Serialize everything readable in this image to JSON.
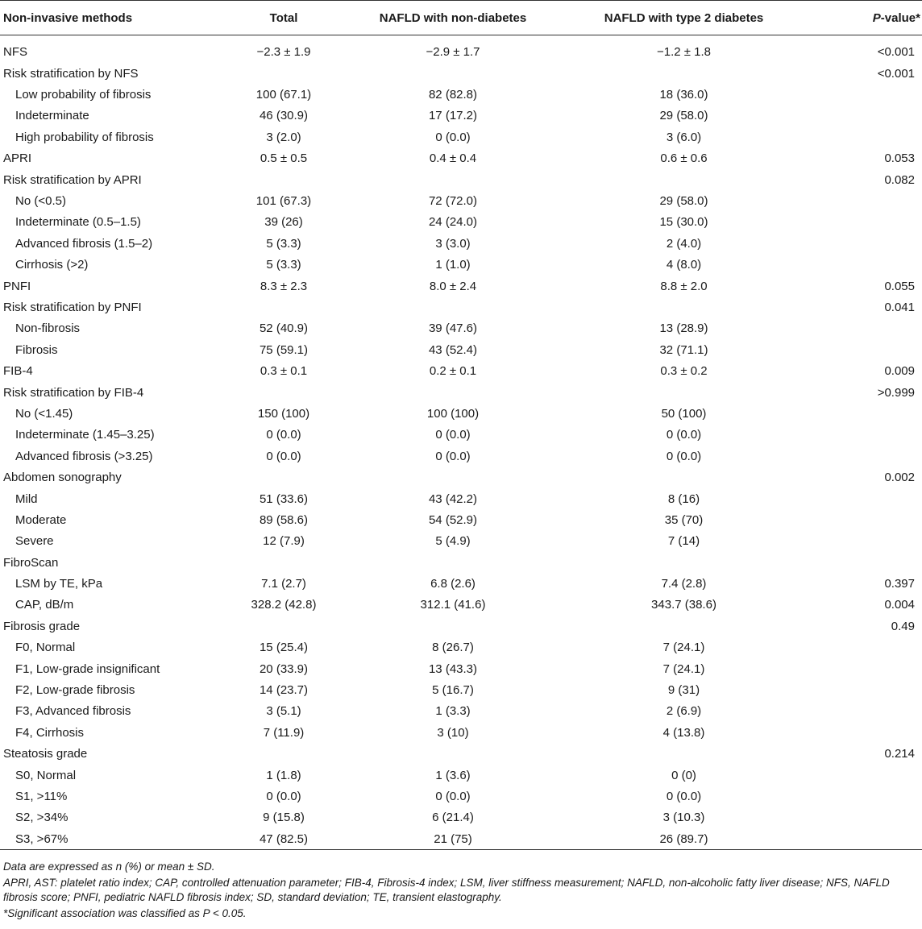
{
  "table": {
    "headers": [
      "Non-invasive methods",
      "Total",
      "NAFLD with non-diabetes",
      "NAFLD with type 2 diabetes",
      "P-value*"
    ],
    "header_pvalue_italic": "P",
    "header_pvalue_rest": "-value*",
    "rows": [
      {
        "label": "NFS",
        "indent": false,
        "total": "−2.3 ± 1.9",
        "non_diabetes": "−2.9 ± 1.7",
        "type2_diabetes": "−1.2 ± 1.8",
        "p_value": "<0.001"
      },
      {
        "label": "Risk stratification by NFS",
        "indent": false,
        "total": "",
        "non_diabetes": "",
        "type2_diabetes": "",
        "p_value": "<0.001"
      },
      {
        "label": "Low probability of fibrosis",
        "indent": true,
        "total": "100 (67.1)",
        "non_diabetes": "82 (82.8)",
        "type2_diabetes": "18 (36.0)",
        "p_value": ""
      },
      {
        "label": "Indeterminate",
        "indent": true,
        "total": "46 (30.9)",
        "non_diabetes": "17 (17.2)",
        "type2_diabetes": "29 (58.0)",
        "p_value": ""
      },
      {
        "label": "High probability of fibrosis",
        "indent": true,
        "total": "3 (2.0)",
        "non_diabetes": "0 (0.0)",
        "type2_diabetes": "3 (6.0)",
        "p_value": ""
      },
      {
        "label": "APRI",
        "indent": false,
        "total": "0.5 ± 0.5",
        "non_diabetes": "0.4 ± 0.4",
        "type2_diabetes": "0.6 ± 0.6",
        "p_value": "0.053"
      },
      {
        "label": "Risk stratification by APRI",
        "indent": false,
        "total": "",
        "non_diabetes": "",
        "type2_diabetes": "",
        "p_value": "0.082"
      },
      {
        "label": "No (<0.5)",
        "indent": true,
        "total": "101 (67.3)",
        "non_diabetes": "72 (72.0)",
        "type2_diabetes": "29 (58.0)",
        "p_value": ""
      },
      {
        "label": "Indeterminate (0.5–1.5)",
        "indent": true,
        "total": "39 (26)",
        "non_diabetes": "24 (24.0)",
        "type2_diabetes": "15 (30.0)",
        "p_value": ""
      },
      {
        "label": "Advanced fibrosis (1.5–2)",
        "indent": true,
        "total": "5 (3.3)",
        "non_diabetes": "3 (3.0)",
        "type2_diabetes": "2 (4.0)",
        "p_value": ""
      },
      {
        "label": "Cirrhosis (>2)",
        "indent": true,
        "total": "5 (3.3)",
        "non_diabetes": "1 (1.0)",
        "type2_diabetes": "4 (8.0)",
        "p_value": ""
      },
      {
        "label": "PNFI",
        "indent": false,
        "total": "8.3 ± 2.3",
        "non_diabetes": "8.0 ± 2.4",
        "type2_diabetes": "8.8 ± 2.0",
        "p_value": "0.055"
      },
      {
        "label": "Risk stratification by PNFI",
        "indent": false,
        "total": "",
        "non_diabetes": "",
        "type2_diabetes": "",
        "p_value": "0.041"
      },
      {
        "label": "Non-fibrosis",
        "indent": true,
        "total": "52 (40.9)",
        "non_diabetes": "39 (47.6)",
        "type2_diabetes": "13 (28.9)",
        "p_value": ""
      },
      {
        "label": "Fibrosis",
        "indent": true,
        "total": "75 (59.1)",
        "non_diabetes": "43 (52.4)",
        "type2_diabetes": "32 (71.1)",
        "p_value": ""
      },
      {
        "label": "FIB-4",
        "indent": false,
        "total": "0.3 ± 0.1",
        "non_diabetes": "0.2 ± 0.1",
        "type2_diabetes": "0.3 ± 0.2",
        "p_value": "0.009"
      },
      {
        "label": "Risk stratification by FIB-4",
        "indent": false,
        "total": "",
        "non_diabetes": "",
        "type2_diabetes": "",
        "p_value": ">0.999"
      },
      {
        "label": "No (<1.45)",
        "indent": true,
        "total": "150 (100)",
        "non_diabetes": "100 (100)",
        "type2_diabetes": "50 (100)",
        "p_value": ""
      },
      {
        "label": "Indeterminate (1.45–3.25)",
        "indent": true,
        "total": "0 (0.0)",
        "non_diabetes": "0 (0.0)",
        "type2_diabetes": "0 (0.0)",
        "p_value": ""
      },
      {
        "label": "Advanced fibrosis (>3.25)",
        "indent": true,
        "total": "0 (0.0)",
        "non_diabetes": "0 (0.0)",
        "type2_diabetes": "0 (0.0)",
        "p_value": ""
      },
      {
        "label": "Abdomen sonography",
        "indent": false,
        "total": "",
        "non_diabetes": "",
        "type2_diabetes": "",
        "p_value": "0.002"
      },
      {
        "label": "Mild",
        "indent": true,
        "total": "51 (33.6)",
        "non_diabetes": "43 (42.2)",
        "type2_diabetes": "8 (16)",
        "p_value": ""
      },
      {
        "label": "Moderate",
        "indent": true,
        "total": "89 (58.6)",
        "non_diabetes": "54 (52.9)",
        "type2_diabetes": "35 (70)",
        "p_value": ""
      },
      {
        "label": "Severe",
        "indent": true,
        "total": "12 (7.9)",
        "non_diabetes": "5 (4.9)",
        "type2_diabetes": "7 (14)",
        "p_value": ""
      },
      {
        "label": "FibroScan",
        "indent": false,
        "total": "",
        "non_diabetes": "",
        "type2_diabetes": "",
        "p_value": ""
      },
      {
        "label": "LSM by TE, kPa",
        "indent": true,
        "total": "7.1 (2.7)",
        "non_diabetes": "6.8 (2.6)",
        "type2_diabetes": "7.4 (2.8)",
        "p_value": "0.397"
      },
      {
        "label": "CAP, dB/m",
        "indent": true,
        "total": "328.2 (42.8)",
        "non_diabetes": "312.1 (41.6)",
        "type2_diabetes": "343.7 (38.6)",
        "p_value": "0.004"
      },
      {
        "label": "Fibrosis grade",
        "indent": false,
        "total": "",
        "non_diabetes": "",
        "type2_diabetes": "",
        "p_value": "0.49"
      },
      {
        "label": "F0, Normal",
        "indent": true,
        "total": "15 (25.4)",
        "non_diabetes": "8 (26.7)",
        "type2_diabetes": "7 (24.1)",
        "p_value": ""
      },
      {
        "label": "F1, Low-grade insignificant",
        "indent": true,
        "total": "20 (33.9)",
        "non_diabetes": "13 (43.3)",
        "type2_diabetes": "7 (24.1)",
        "p_value": ""
      },
      {
        "label": "F2, Low-grade fibrosis",
        "indent": true,
        "total": "14 (23.7)",
        "non_diabetes": "5 (16.7)",
        "type2_diabetes": "9 (31)",
        "p_value": ""
      },
      {
        "label": "F3, Advanced fibrosis",
        "indent": true,
        "total": "3 (5.1)",
        "non_diabetes": "1 (3.3)",
        "type2_diabetes": "2 (6.9)",
        "p_value": ""
      },
      {
        "label": "F4, Cirrhosis",
        "indent": true,
        "total": "7 (11.9)",
        "non_diabetes": "3 (10)",
        "type2_diabetes": "4 (13.8)",
        "p_value": ""
      },
      {
        "label": "Steatosis grade",
        "indent": false,
        "total": "",
        "non_diabetes": "",
        "type2_diabetes": "",
        "p_value": "0.214"
      },
      {
        "label": "S0, Normal",
        "indent": true,
        "total": "1 (1.8)",
        "non_diabetes": "1 (3.6)",
        "type2_diabetes": "0 (0)",
        "p_value": ""
      },
      {
        "label": "S1, >11%",
        "indent": true,
        "total": "0 (0.0)",
        "non_diabetes": "0 (0.0)",
        "type2_diabetes": "0 (0.0)",
        "p_value": ""
      },
      {
        "label": "S2, >34%",
        "indent": true,
        "total": "9 (15.8)",
        "non_diabetes": "6 (21.4)",
        "type2_diabetes": "3 (10.3)",
        "p_value": ""
      },
      {
        "label": "S3, >67%",
        "indent": true,
        "total": "47 (82.5)",
        "non_diabetes": "21 (75)",
        "type2_diabetes": "26 (89.7)",
        "p_value": ""
      }
    ]
  },
  "footnotes": [
    "Data are expressed as n (%) or mean ± SD.",
    "APRI, AST: platelet ratio index; CAP, controlled attenuation parameter; FIB-4, Fibrosis-4 index; LSM, liver stiffness measurement; NAFLD, non-alcoholic fatty liver disease; NFS, NAFLD fibrosis score; PNFI, pediatric NAFLD fibrosis index; SD, standard deviation; TE, transient elastography.",
    "*Significant association was classified as P < 0.05."
  ]
}
